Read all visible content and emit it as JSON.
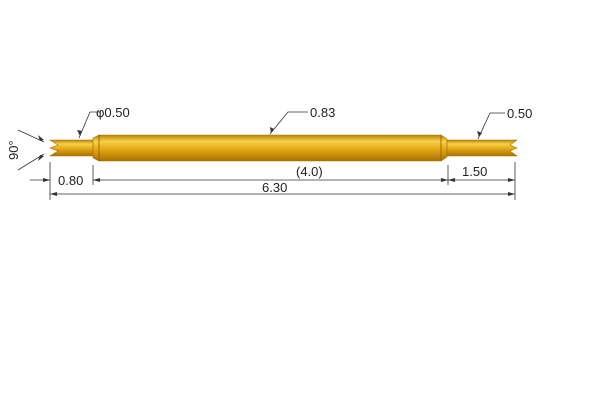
{
  "drawing": {
    "colors": {
      "pin_gold": "#e3a713",
      "pin_highlight": "#f6d24a",
      "pin_shadow": "#b27d06",
      "line": "#333333"
    },
    "labels": {
      "tip_diameter_left": "φ0.50",
      "barrel_diameter": "0.83",
      "tip_diameter_right": "0.50",
      "tip_angle": "90°",
      "left_plunger_length": "0.80",
      "barrel_length": "(4.0)",
      "right_plunger_length": "1.50",
      "total_length": "6.30"
    }
  }
}
